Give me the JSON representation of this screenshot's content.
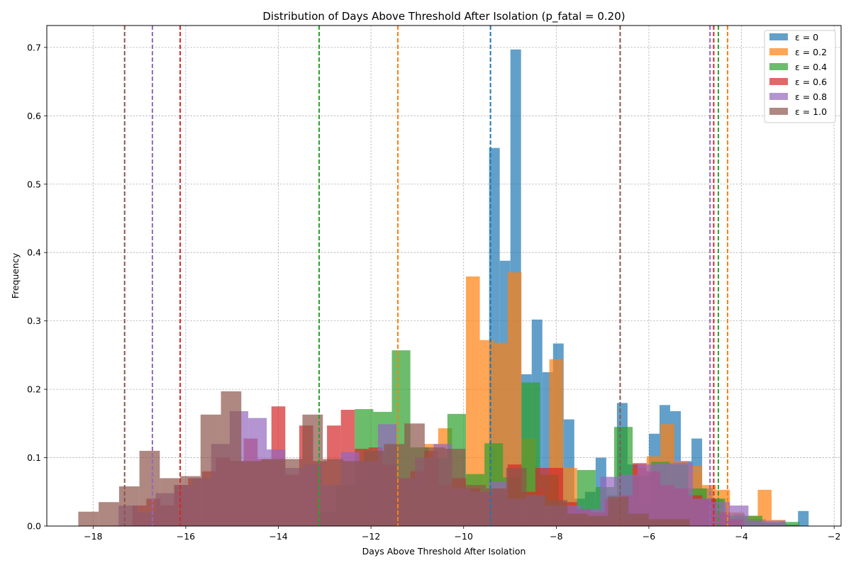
{
  "chart_data": {
    "type": "bar",
    "title": "Distribution of Days Above Threshold After Isolation (p_fatal = 0.20)",
    "xlabel": "Days Above Threshold After Isolation",
    "ylabel": "Frequency",
    "xlim": [
      -19.0,
      -1.85
    ],
    "ylim": [
      0,
      0.732
    ],
    "xticks": [
      -18,
      -16,
      -14,
      -12,
      -10,
      -8,
      -6,
      -4,
      -2
    ],
    "xtick_labels": [
      "−18",
      "−16",
      "−14",
      "−12",
      "−10",
      "−8",
      "−6",
      "−4",
      "−2"
    ],
    "yticks": [
      0.0,
      0.1,
      0.2,
      0.3,
      0.4,
      0.5,
      0.6,
      0.7
    ],
    "ytick_labels": [
      "0.0",
      "0.1",
      "0.2",
      "0.3",
      "0.4",
      "0.5",
      "0.6",
      "0.7"
    ],
    "grid": true,
    "legend_position": "top-right",
    "series": [
      {
        "name": "ε = 0",
        "color": "#1f77b4",
        "mean_line": -9.42,
        "bins": [
          [
            -9.45,
            -9.22,
            0.553
          ],
          [
            -9.22,
            -8.99,
            0.388
          ],
          [
            -8.99,
            -8.76,
            0.697
          ],
          [
            -8.76,
            -8.53,
            0.222
          ],
          [
            -8.53,
            -8.3,
            0.302
          ],
          [
            -8.3,
            -8.07,
            0.225
          ],
          [
            -8.07,
            -7.84,
            0.267
          ],
          [
            -7.84,
            -7.61,
            0.156
          ],
          [
            -7.61,
            -7.38,
            0.04
          ],
          [
            -7.38,
            -7.15,
            0.05
          ],
          [
            -7.15,
            -6.92,
            0.1
          ],
          [
            -6.92,
            -6.69,
            0.045
          ],
          [
            -6.69,
            -6.46,
            0.18
          ],
          [
            -6.46,
            -6.23,
            0.09
          ],
          [
            -6.23,
            -6.0,
            0.03
          ],
          [
            -6.0,
            -5.77,
            0.135
          ],
          [
            -5.77,
            -5.54,
            0.177
          ],
          [
            -5.54,
            -5.31,
            0.168
          ],
          [
            -5.31,
            -5.08,
            0.095
          ],
          [
            -5.08,
            -4.85,
            0.128
          ],
          [
            -4.85,
            -4.62,
            0.055
          ],
          [
            -4.62,
            -4.39,
            0.04
          ],
          [
            -4.39,
            -4.16,
            0.01
          ],
          [
            -4.16,
            -3.93,
            0.018
          ],
          [
            -3.93,
            -3.7,
            0.01
          ],
          [
            -3.7,
            -3.47,
            0.01
          ],
          [
            -3.47,
            -3.24,
            0.005
          ],
          [
            -3.24,
            -3.01,
            0.003
          ],
          [
            -3.01,
            -2.78,
            0.002
          ],
          [
            -2.78,
            -2.55,
            0.022
          ]
        ]
      },
      {
        "name": "ε = 0.2",
        "color": "#ff7f0e",
        "mean_line": -11.42,
        "bins": [
          [
            -11.45,
            -11.15,
            0.065
          ],
          [
            -11.15,
            -10.85,
            0.055
          ],
          [
            -10.85,
            -10.55,
            0.12
          ],
          [
            -10.55,
            -10.25,
            0.143
          ],
          [
            -10.25,
            -9.95,
            0.04
          ],
          [
            -9.95,
            -9.65,
            0.365
          ],
          [
            -9.65,
            -9.35,
            0.272
          ],
          [
            -9.35,
            -9.05,
            0.268
          ],
          [
            -9.05,
            -8.75,
            0.371
          ],
          [
            -8.75,
            -8.45,
            0.128
          ],
          [
            -8.45,
            -8.15,
            0.05
          ],
          [
            -8.15,
            -7.85,
            0.244
          ],
          [
            -7.85,
            -7.55,
            0.085
          ],
          [
            -7.55,
            -7.25,
            0.022
          ],
          [
            -7.25,
            -6.95,
            0.02
          ],
          [
            -6.95,
            -6.65,
            0.01
          ],
          [
            -6.65,
            -6.35,
            0.01
          ],
          [
            -6.35,
            -6.05,
            0.085
          ],
          [
            -6.05,
            -5.75,
            0.102
          ],
          [
            -5.75,
            -5.45,
            0.149
          ],
          [
            -5.45,
            -5.15,
            0.095
          ],
          [
            -5.15,
            -4.85,
            0.088
          ],
          [
            -4.85,
            -4.55,
            0.06
          ],
          [
            -4.55,
            -4.25,
            0.053
          ],
          [
            -4.25,
            -3.95,
            0.02
          ],
          [
            -3.95,
            -3.65,
            0.015
          ],
          [
            -3.65,
            -3.35,
            0.053
          ],
          [
            -3.35,
            -3.05,
            0.009
          ]
        ]
      },
      {
        "name": "ε = 0.4",
        "color": "#2ca02c",
        "mean_line": -13.12,
        "bins": [
          [
            -13.15,
            -12.75,
            0.02
          ],
          [
            -12.75,
            -12.35,
            0.06
          ],
          [
            -12.35,
            -11.95,
            0.171
          ],
          [
            -11.95,
            -11.55,
            0.167
          ],
          [
            -11.55,
            -11.15,
            0.257
          ],
          [
            -11.15,
            -10.75,
            0.115
          ],
          [
            -10.75,
            -10.35,
            0.1
          ],
          [
            -10.35,
            -9.95,
            0.164
          ],
          [
            -9.95,
            -9.55,
            0.076
          ],
          [
            -9.55,
            -9.15,
            0.121
          ],
          [
            -9.15,
            -8.75,
            0.071
          ],
          [
            -8.75,
            -8.35,
            0.21
          ],
          [
            -8.35,
            -7.95,
            0.075
          ],
          [
            -7.95,
            -7.55,
            0.03
          ],
          [
            -7.55,
            -7.15,
            0.082
          ],
          [
            -7.15,
            -6.75,
            0.057
          ],
          [
            -6.75,
            -6.35,
            0.145
          ],
          [
            -6.35,
            -5.95,
            0.073
          ],
          [
            -5.95,
            -5.55,
            0.094
          ],
          [
            -5.55,
            -5.15,
            0.09
          ],
          [
            -5.15,
            -4.75,
            0.055
          ],
          [
            -4.75,
            -4.35,
            0.04
          ],
          [
            -4.35,
            -3.95,
            0.015
          ],
          [
            -3.95,
            -3.55,
            0.015
          ],
          [
            -3.55,
            -3.15,
            0.005
          ],
          [
            -3.15,
            -2.75,
            0.006
          ]
        ]
      },
      {
        "name": "ε = 0.6",
        "color": "#d62728",
        "mean_line": -16.12,
        "bins": [
          [
            -17.15,
            -16.85,
            0.03
          ],
          [
            -16.85,
            -16.55,
            0.04
          ],
          [
            -16.55,
            -16.25,
            0.03
          ],
          [
            -16.25,
            -15.95,
            0.06
          ],
          [
            -15.95,
            -15.65,
            0.07
          ],
          [
            -15.65,
            -15.35,
            0.08
          ],
          [
            -15.35,
            -15.05,
            0.1
          ],
          [
            -15.05,
            -14.75,
            0.095
          ],
          [
            -14.75,
            -14.45,
            0.128
          ],
          [
            -14.45,
            -14.15,
            0.098
          ],
          [
            -14.15,
            -13.85,
            0.175
          ],
          [
            -13.85,
            -13.55,
            0.075
          ],
          [
            -13.55,
            -13.25,
            0.147
          ],
          [
            -13.25,
            -12.95,
            0.095
          ],
          [
            -12.95,
            -12.65,
            0.147
          ],
          [
            -12.65,
            -12.35,
            0.17
          ],
          [
            -12.35,
            -12.05,
            0.113
          ],
          [
            -12.05,
            -11.75,
            0.115
          ],
          [
            -11.75,
            -11.45,
            0.09
          ],
          [
            -11.45,
            -11.15,
            0.07
          ],
          [
            -11.15,
            -10.85,
            0.08
          ],
          [
            -10.85,
            -10.55,
            0.11
          ],
          [
            -10.55,
            -10.25,
            0.06
          ],
          [
            -10.25,
            -9.95,
            0.07
          ],
          [
            -9.95,
            -9.65,
            0.055
          ],
          [
            -9.65,
            -9.35,
            0.05
          ],
          [
            -9.35,
            -9.05,
            0.055
          ],
          [
            -9.05,
            -8.75,
            0.09
          ],
          [
            -8.75,
            -8.45,
            0.05
          ],
          [
            -8.45,
            -8.15,
            0.085
          ],
          [
            -8.15,
            -7.85,
            0.085
          ],
          [
            -7.85,
            -7.55,
            0.035
          ],
          [
            -7.55,
            -7.25,
            0.025
          ],
          [
            -7.25,
            -6.95,
            0.02
          ],
          [
            -6.95,
            -6.65,
            0.04
          ],
          [
            -6.65,
            -6.35,
            0.045
          ],
          [
            -6.35,
            -6.05,
            0.092
          ],
          [
            -6.05,
            -5.75,
            0.08
          ],
          [
            -5.75,
            -5.45,
            0.06
          ],
          [
            -5.45,
            -5.15,
            0.055
          ],
          [
            -5.15,
            -4.85,
            0.045
          ],
          [
            -4.85,
            -4.55,
            0.04
          ],
          [
            -4.55,
            -4.25,
            0.02
          ],
          [
            -4.25,
            -3.95,
            0.01
          ]
        ]
      },
      {
        "name": "ε = 0.8",
        "color": "#9467bd",
        "mean_line": -16.72,
        "bins": [
          [
            -17.45,
            -17.05,
            0.03
          ],
          [
            -17.05,
            -16.65,
            0.02
          ],
          [
            -16.65,
            -16.25,
            0.048
          ],
          [
            -16.25,
            -15.85,
            0.06
          ],
          [
            -15.85,
            -15.45,
            0.07
          ],
          [
            -15.45,
            -15.05,
            0.12
          ],
          [
            -15.05,
            -14.65,
            0.168
          ],
          [
            -14.65,
            -14.25,
            0.158
          ],
          [
            -14.25,
            -13.85,
            0.112
          ],
          [
            -13.85,
            -13.45,
            0.085
          ],
          [
            -13.45,
            -13.05,
            0.09
          ],
          [
            -13.05,
            -12.65,
            0.06
          ],
          [
            -12.65,
            -12.25,
            0.108
          ],
          [
            -12.25,
            -11.85,
            0.095
          ],
          [
            -11.85,
            -11.45,
            0.149
          ],
          [
            -11.45,
            -11.05,
            0.07
          ],
          [
            -11.05,
            -10.65,
            0.1
          ],
          [
            -10.65,
            -10.25,
            0.12
          ],
          [
            -10.25,
            -9.85,
            0.055
          ],
          [
            -9.85,
            -9.45,
            0.05
          ],
          [
            -9.45,
            -9.05,
            0.065
          ],
          [
            -9.05,
            -8.65,
            0.04
          ],
          [
            -8.65,
            -8.25,
            0.045
          ],
          [
            -8.25,
            -7.85,
            0.03
          ],
          [
            -7.85,
            -7.45,
            0.03
          ],
          [
            -7.45,
            -7.05,
            0.025
          ],
          [
            -7.05,
            -6.65,
            0.072
          ],
          [
            -6.65,
            -6.25,
            0.075
          ],
          [
            -6.25,
            -5.85,
            0.09
          ],
          [
            -5.85,
            -5.45,
            0.092
          ],
          [
            -5.45,
            -5.05,
            0.093
          ],
          [
            -5.05,
            -4.65,
            0.04
          ],
          [
            -4.65,
            -4.25,
            0.035
          ],
          [
            -4.25,
            -3.85,
            0.03
          ],
          [
            -3.85,
            -3.45,
            0.008
          ],
          [
            -3.45,
            -3.05,
            0.008
          ]
        ]
      },
      {
        "name": "ε = 1.0",
        "color": "#8c564b",
        "mean_line": -17.32,
        "bins": [
          [
            -18.32,
            -17.88,
            0.021
          ],
          [
            -17.88,
            -17.44,
            0.035
          ],
          [
            -17.44,
            -17.0,
            0.058
          ],
          [
            -17.0,
            -16.56,
            0.11
          ],
          [
            -16.56,
            -16.12,
            0.07
          ],
          [
            -16.12,
            -15.68,
            0.073
          ],
          [
            -15.68,
            -15.24,
            0.163
          ],
          [
            -15.24,
            -14.8,
            0.197
          ],
          [
            -14.8,
            -14.36,
            0.095
          ],
          [
            -14.36,
            -13.92,
            0.098
          ],
          [
            -13.92,
            -13.48,
            0.098
          ],
          [
            -13.48,
            -13.04,
            0.163
          ],
          [
            -13.04,
            -12.6,
            0.098
          ],
          [
            -12.6,
            -12.16,
            0.095
          ],
          [
            -12.16,
            -11.72,
            0.11
          ],
          [
            -11.72,
            -11.28,
            0.12
          ],
          [
            -11.28,
            -10.84,
            0.15
          ],
          [
            -10.84,
            -10.4,
            0.115
          ],
          [
            -10.4,
            -9.96,
            0.113
          ],
          [
            -9.96,
            -9.52,
            0.06
          ],
          [
            -9.52,
            -9.08,
            0.055
          ],
          [
            -9.08,
            -8.64,
            0.085
          ],
          [
            -8.64,
            -8.2,
            0.045
          ],
          [
            -8.2,
            -7.76,
            0.038
          ],
          [
            -7.76,
            -7.32,
            0.018
          ],
          [
            -7.32,
            -6.88,
            0.015
          ],
          [
            -6.88,
            -6.44,
            0.043
          ],
          [
            -6.44,
            -6.0,
            0.018
          ],
          [
            -6.0,
            -5.56,
            0.01
          ],
          [
            -5.56,
            -5.12,
            0.01
          ]
        ]
      }
    ],
    "extra_mean_lines": [
      {
        "x": -6.62,
        "color": "#8c564b"
      },
      {
        "x": -4.68,
        "color": "#9467bd"
      },
      {
        "x": -4.6,
        "color": "#d62728"
      },
      {
        "x": -4.5,
        "color": "#2ca02c"
      },
      {
        "x": -4.3,
        "color": "#ff7f0e"
      }
    ]
  }
}
